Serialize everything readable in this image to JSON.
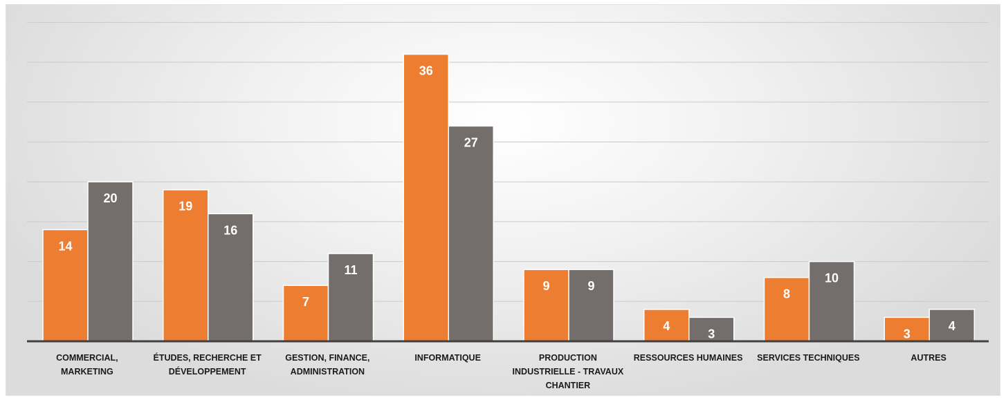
{
  "chart_data": {
    "type": "bar",
    "categories": [
      [
        "COMMERCIAL,",
        "MARKETING"
      ],
      [
        "ÉTUDES, RECHERCHE ET",
        "DÉVELOPPEMENT"
      ],
      [
        "GESTION, FINANCE,",
        "ADMINISTRATION"
      ],
      [
        "INFORMATIQUE"
      ],
      [
        "PRODUCTION",
        "INDUSTRIELLE - TRAVAUX",
        "CHANTIER"
      ],
      [
        "RESSOURCES HUMAINES"
      ],
      [
        "SERVICES TECHNIQUES"
      ],
      [
        "AUTRES"
      ]
    ],
    "series": [
      {
        "values": [
          14,
          19,
          7,
          36,
          9,
          4,
          8,
          3
        ],
        "color": "#ED7D31"
      },
      {
        "values": [
          20,
          16,
          11,
          27,
          9,
          3,
          10,
          4
        ],
        "color": "#736E6B"
      }
    ],
    "ylim": [
      0,
      40
    ],
    "y_gridline_step": 5,
    "grid": true,
    "legend": "none",
    "title": "",
    "xlabel": "",
    "ylabel": ""
  }
}
